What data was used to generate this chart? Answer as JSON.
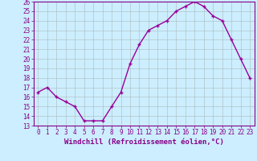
{
  "x": [
    0,
    1,
    2,
    3,
    4,
    5,
    6,
    7,
    8,
    9,
    10,
    11,
    12,
    13,
    14,
    15,
    16,
    17,
    18,
    19,
    20,
    21,
    22,
    23
  ],
  "y": [
    16.5,
    17.0,
    16.0,
    15.5,
    15.0,
    13.5,
    13.5,
    13.5,
    15.0,
    16.5,
    19.5,
    21.5,
    23.0,
    23.5,
    24.0,
    25.0,
    25.5,
    26.0,
    25.5,
    24.5,
    24.0,
    22.0,
    20.0,
    18.0
  ],
  "line_color": "#990099",
  "marker": "+",
  "bg_color": "#cceeff",
  "grid_color": "#aabbbb",
  "xlabel": "Windchill (Refroidissement éolien,°C)",
  "ylim": [
    13,
    26
  ],
  "xlim": [
    -0.5,
    23.5
  ],
  "yticks": [
    13,
    14,
    15,
    16,
    17,
    18,
    19,
    20,
    21,
    22,
    23,
    24,
    25,
    26
  ],
  "xticks": [
    0,
    1,
    2,
    3,
    4,
    5,
    6,
    7,
    8,
    9,
    10,
    11,
    12,
    13,
    14,
    15,
    16,
    17,
    18,
    19,
    20,
    21,
    22,
    23
  ],
  "tick_fontsize": 5.5,
  "xlabel_fontsize": 6.5,
  "axis_color": "#880088",
  "spine_color": "#880088",
  "linewidth": 1.0,
  "markersize": 3.5
}
